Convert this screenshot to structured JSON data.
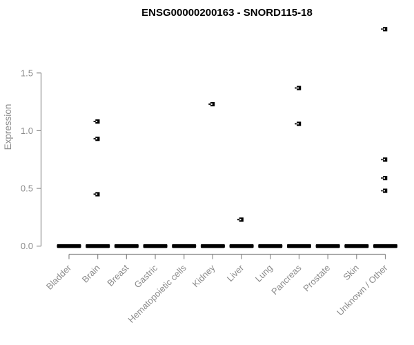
{
  "figure": {
    "title": "ENSG00000200163 - SNORD115-18"
  },
  "colors": {
    "background": "#ffffff",
    "axis": "#8b8b8b",
    "tick_text": "#8b8b8b",
    "title_text": "#000000",
    "marker": "#000000"
  },
  "chart_data": {
    "type": "scatter",
    "title": "ENSG00000200163 - SNORD115-18",
    "xlabel": "",
    "ylabel": "Expression",
    "ylim": [
      0,
      1.95
    ],
    "grid": false,
    "legend": null,
    "marker_style": "small-black-square",
    "yticks": [
      {
        "value": 0.0,
        "label": "0.0"
      },
      {
        "value": 0.5,
        "label": "0.5"
      },
      {
        "value": 1.0,
        "label": "1.0"
      },
      {
        "value": 1.5,
        "label": "1.5"
      }
    ],
    "categories": [
      "Bladder",
      "Brain",
      "Breast",
      "Gastric",
      "Hematopoietic cells",
      "Kidney",
      "Liver",
      "Lung",
      "Pancreas",
      "Prostate",
      "Skin",
      "Unknown / Other"
    ],
    "series": [
      {
        "category": "Bladder",
        "zero_cluster": true,
        "nonzero_values": []
      },
      {
        "category": "Brain",
        "zero_cluster": true,
        "nonzero_values": [
          1.08,
          0.93,
          0.45
        ]
      },
      {
        "category": "Breast",
        "zero_cluster": true,
        "nonzero_values": []
      },
      {
        "category": "Gastric",
        "zero_cluster": true,
        "nonzero_values": []
      },
      {
        "category": "Hematopoietic cells",
        "zero_cluster": true,
        "nonzero_values": []
      },
      {
        "category": "Kidney",
        "zero_cluster": true,
        "nonzero_values": [
          1.23
        ]
      },
      {
        "category": "Liver",
        "zero_cluster": true,
        "nonzero_values": [
          0.23
        ]
      },
      {
        "category": "Lung",
        "zero_cluster": true,
        "nonzero_values": []
      },
      {
        "category": "Pancreas",
        "zero_cluster": true,
        "nonzero_values": [
          1.37,
          1.06
        ]
      },
      {
        "category": "Prostate",
        "zero_cluster": true,
        "nonzero_values": []
      },
      {
        "category": "Skin",
        "zero_cluster": true,
        "nonzero_values": []
      },
      {
        "category": "Unknown / Other",
        "zero_cluster": true,
        "nonzero_values": [
          1.88,
          0.75,
          0.59,
          0.48
        ]
      }
    ]
  }
}
